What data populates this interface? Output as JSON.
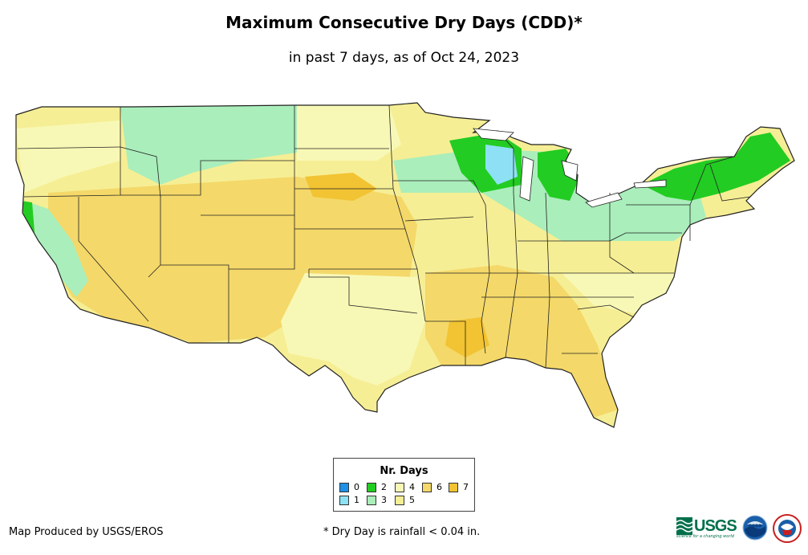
{
  "header": {
    "title": "Maximum Consecutive Dry Days (CDD)*",
    "subtitle": "in past 7 days, as of Oct 24, 2023"
  },
  "map": {
    "region": "Contiguous United States",
    "palette": {
      "0": "#1e90e8",
      "1": "#8ee1f4",
      "2": "#22cc22",
      "3": "#aaeebb",
      "4": "#f8f8b6",
      "5": "#f6ee94",
      "6": "#f4d869",
      "7": "#f2c332"
    }
  },
  "legend": {
    "title": "Nr. Days",
    "items": [
      {
        "label": "0",
        "color": "#1e90e8"
      },
      {
        "label": "1",
        "color": "#8ee1f4"
      },
      {
        "label": "2",
        "color": "#22cc22"
      },
      {
        "label": "3",
        "color": "#aaeebb"
      },
      {
        "label": "4",
        "color": "#f8f8b6"
      },
      {
        "label": "5",
        "color": "#f6ee94"
      },
      {
        "label": "6",
        "color": "#f4d869"
      },
      {
        "label": "7",
        "color": "#f2c332"
      }
    ]
  },
  "footer": {
    "credit": "Map Produced by USGS/EROS",
    "footnote": "* Dry Day is rainfall < 0.04 in.",
    "logos": {
      "usgs": "USGS",
      "usgs_tagline": "science for a changing world",
      "noaa": "noaa"
    }
  }
}
